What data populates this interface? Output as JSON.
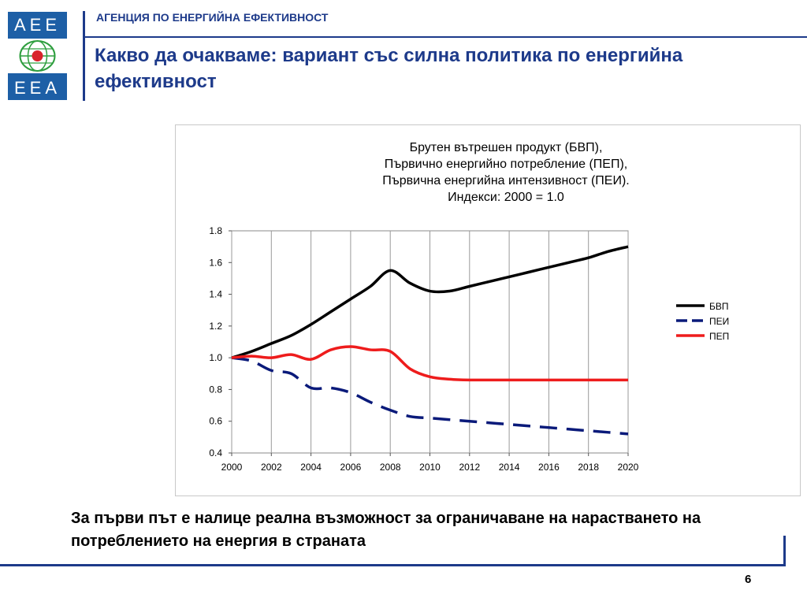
{
  "header": {
    "logo_top": "AEE",
    "logo_bottom": "EEA",
    "agency": "АГЕНЦИЯ ПО ЕНЕРГИЙНА ЕФЕКТИВНОСТ",
    "title": "Какво да очакваме: вариант със силна политика по енергийна ефективност"
  },
  "colors": {
    "brand_blue": "#1d3a8a",
    "logo_blue": "#1d5fa6",
    "logo_red": "#d8232a",
    "logo_green": "#2e9e3e"
  },
  "chart_data": {
    "type": "line",
    "title_lines": [
      "Брутен вътрешен продукт (БВП),",
      "Първично енергийно потребление (ПЕП),",
      "Първична енергийна интензивност (ПЕИ).",
      "Индекси: 2000 = 1.0"
    ],
    "x": [
      2000,
      2001,
      2002,
      2003,
      2004,
      2005,
      2006,
      2007,
      2008,
      2009,
      2010,
      2011,
      2012,
      2013,
      2014,
      2015,
      2016,
      2017,
      2018,
      2019,
      2020
    ],
    "xticks": [
      "2000",
      "2002",
      "2004",
      "2006",
      "2008",
      "2010",
      "2012",
      "2014",
      "2016",
      "2018",
      "2020"
    ],
    "yticks": [
      "0.4",
      "0.6",
      "0.8",
      "1.0",
      "1.2",
      "1.4",
      "1.6",
      "1.8"
    ],
    "xlim": [
      2000,
      2020
    ],
    "ylim": [
      0.4,
      1.8
    ],
    "grid": "vertical",
    "legend_position": "right",
    "series": [
      {
        "name": "БВП",
        "color": "#000000",
        "dash": "solid",
        "values": [
          1.0,
          1.04,
          1.09,
          1.14,
          1.21,
          1.29,
          1.37,
          1.45,
          1.55,
          1.47,
          1.42,
          1.42,
          1.45,
          1.48,
          1.51,
          1.54,
          1.57,
          1.6,
          1.63,
          1.67,
          1.7
        ]
      },
      {
        "name": "ПЕИ",
        "color": "#0a1a7a",
        "dash": "dashed",
        "values": [
          1.0,
          0.98,
          0.92,
          0.9,
          0.81,
          0.81,
          0.78,
          0.72,
          0.67,
          0.63,
          0.62,
          0.61,
          0.6,
          0.59,
          0.58,
          0.57,
          0.56,
          0.55,
          0.54,
          0.53,
          0.52
        ]
      },
      {
        "name": "ПЕП",
        "color": "#ee1c1c",
        "dash": "solid",
        "values": [
          1.0,
          1.01,
          1.0,
          1.02,
          0.99,
          1.05,
          1.07,
          1.05,
          1.04,
          0.93,
          0.88,
          0.865,
          0.86,
          0.86,
          0.86,
          0.86,
          0.86,
          0.86,
          0.86,
          0.86,
          0.86
        ]
      }
    ]
  },
  "footer": {
    "text": "За първи път е налице реална възможност за ограничаване на нарастването на потреблението на енергия в страната",
    "page_number": "6"
  }
}
